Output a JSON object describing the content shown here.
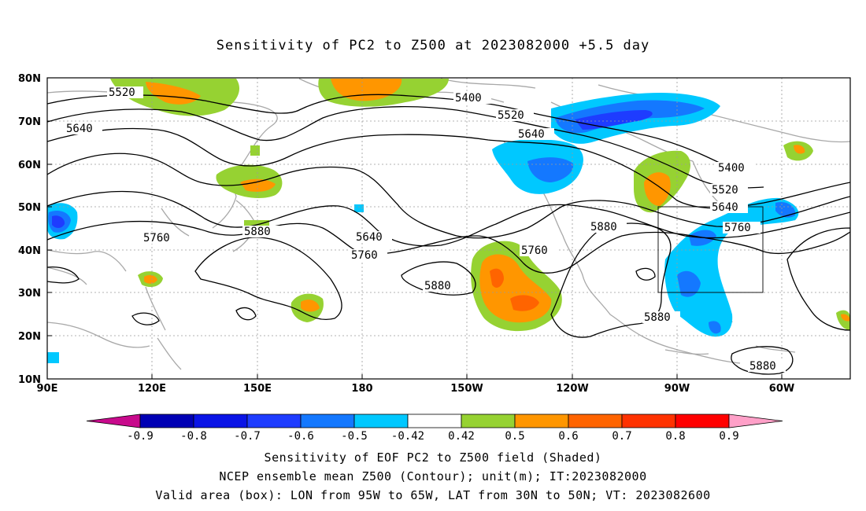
{
  "title": "Sensitivity of PC2 to Z500 at 2023082000 +5.5 day",
  "lat_labels": [
    "80N",
    "70N",
    "60N",
    "50N",
    "40N",
    "30N",
    "20N",
    "10N"
  ],
  "lon_labels": [
    "90E",
    "120E",
    "150E",
    "180",
    "150W",
    "120W",
    "90W",
    "60W"
  ],
  "contour_labels": [
    "5520",
    "5400",
    "5520",
    "5640",
    "5640",
    "5400",
    "5520",
    "5640",
    "5760",
    "5760",
    "5880",
    "5640",
    "5760",
    "5760",
    "5880",
    "5880",
    "5880",
    "5880"
  ],
  "colorbar": {
    "labels": [
      "-0.9",
      "-0.8",
      "-0.7",
      "-0.6",
      "-0.5",
      "-0.42",
      "0.42",
      "0.5",
      "0.6",
      "0.7",
      "0.8",
      "0.9"
    ],
    "colors": [
      "#c80a8c",
      "#0000b4",
      "#0a14e6",
      "#1e3cff",
      "#1478ff",
      "#00c8ff",
      "#ffffff",
      "#96d232",
      "#ff9600",
      "#ff6400",
      "#ff3200",
      "#ff0000",
      "#ffa0c8"
    ]
  },
  "captions": {
    "line1": "Sensitivity of EOF PC2 to Z500 field (Shaded)",
    "line2": "NCEP ensemble mean Z500 (Contour); unit(m); IT:2023082000",
    "line3": "Valid area (box): LON from 95W to 65W, LAT from 30N to 50N; VT: 2023082600"
  }
}
